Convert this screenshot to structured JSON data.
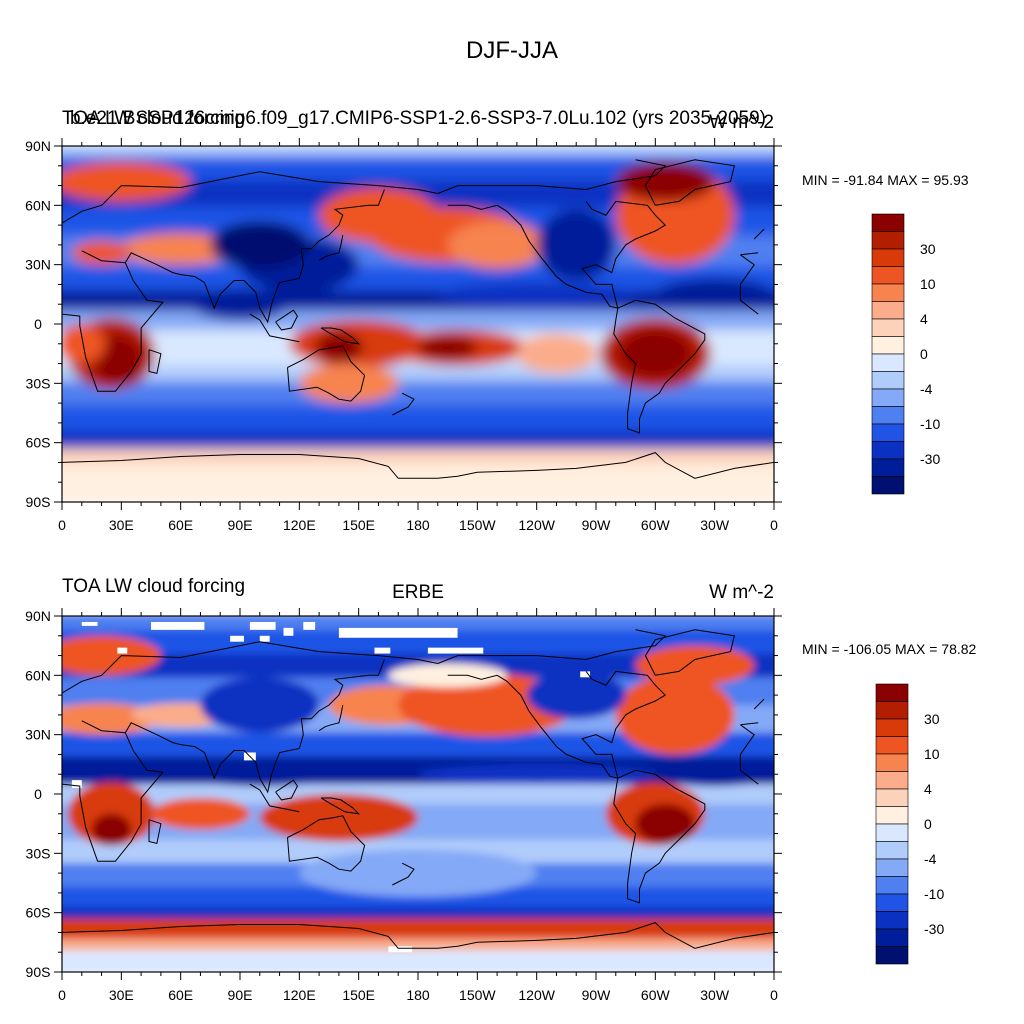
{
  "figure": {
    "title": "DJF-JJA"
  },
  "chart_data": [
    {
      "type": "heatmap",
      "panel": "top",
      "left_title": "TOA LW cloud forcing",
      "center_title": "b.e21.BSSP126cmip6.f09_g17.CMIP6-SSP1-2.6-SSP3-7.0Lu.102 (yrs 2035-2059)",
      "right_title": "W m^-2",
      "min_max_label": "MIN = -91.84 MAX =  95.93",
      "min": -91.84,
      "max": 95.93,
      "x_tick_labels": [
        "0",
        "30E",
        "60E",
        "90E",
        "120E",
        "150E",
        "180",
        "150W",
        "120W",
        "90W",
        "60W",
        "30W",
        "0"
      ],
      "y_tick_labels": [
        "90N",
        "60N",
        "30N",
        "0",
        "30S",
        "60S",
        "90S"
      ],
      "xlim": [
        0,
        360
      ],
      "ylim": [
        -90,
        90
      ],
      "colorbar_labels": [
        "30",
        "10",
        "4",
        "0",
        "-4",
        "-10",
        "-30"
      ],
      "colorbar_colors": [
        "#8b0000",
        "#b41e00",
        "#d83a0a",
        "#ee5522",
        "#f7834f",
        "#fbac8a",
        "#fdd2bb",
        "#fff0e0",
        "#d9e8ff",
        "#b0ccfb",
        "#84a9f6",
        "#4f7ff0",
        "#1f54e6",
        "#0a31c2",
        "#001e9a",
        "#001070"
      ]
    },
    {
      "type": "heatmap",
      "panel": "bottom",
      "left_title": "TOA LW cloud forcing",
      "center_title": "ERBE",
      "right_title": "W m^-2",
      "min_max_label": "MIN = -106.05 MAX =  78.82",
      "min": -106.05,
      "max": 78.82,
      "x_tick_labels": [
        "0",
        "30E",
        "60E",
        "90E",
        "120E",
        "150E",
        "180",
        "150W",
        "120W",
        "90W",
        "60W",
        "30W",
        "0"
      ],
      "y_tick_labels": [
        "90N",
        "60N",
        "30N",
        "0",
        "30S",
        "60S",
        "90S"
      ],
      "xlim": [
        0,
        360
      ],
      "ylim": [
        -90,
        90
      ],
      "colorbar_labels": [
        "30",
        "10",
        "4",
        "0",
        "-4",
        "-10",
        "-30"
      ],
      "colorbar_colors": [
        "#8b0000",
        "#b41e00",
        "#d83a0a",
        "#ee5522",
        "#f7834f",
        "#fbac8a",
        "#fdd2bb",
        "#fff0e0",
        "#d9e8ff",
        "#b0ccfb",
        "#84a9f6",
        "#4f7ff0",
        "#1f54e6",
        "#0a31c2",
        "#001e9a",
        "#001070"
      ]
    }
  ]
}
